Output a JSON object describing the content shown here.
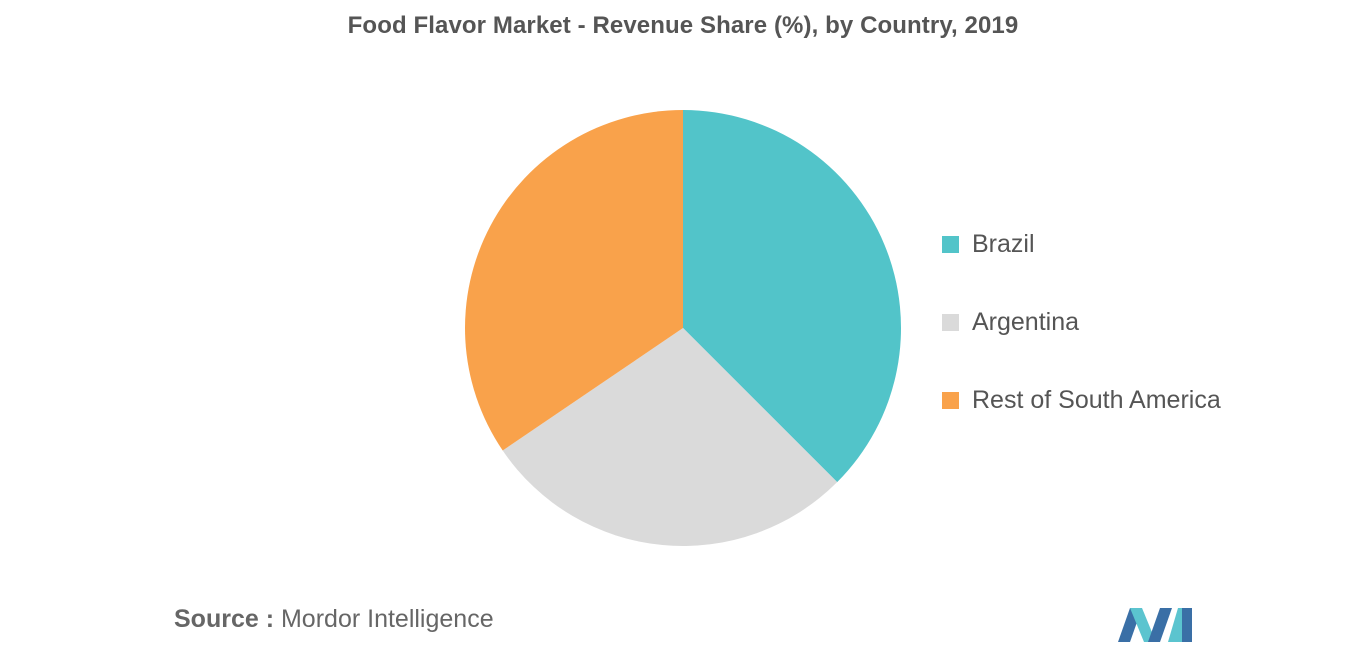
{
  "title": "Food Flavor Market - Revenue Share (%), by Country, 2019",
  "chart_data": {
    "type": "pie",
    "title": "Food Flavor Market - Revenue Share (%), by Country, 2019",
    "start_angle_deg": 0,
    "direction": "clockwise",
    "slices": [
      {
        "label": "Brazil",
        "value": 37.5,
        "color": "#52C4C9"
      },
      {
        "label": "Argentina",
        "value": 28.0,
        "color": "#DADADA"
      },
      {
        "label": "Rest of South America",
        "value": 34.5,
        "color": "#F9A24B"
      }
    ],
    "legend_position": "right"
  },
  "source": {
    "prefix": "Source :",
    "text": "Mordor Intelligence"
  },
  "logo": {
    "name": "mordor-intelligence-logo",
    "colors": [
      "#3A6FA6",
      "#5BC4CF"
    ]
  }
}
